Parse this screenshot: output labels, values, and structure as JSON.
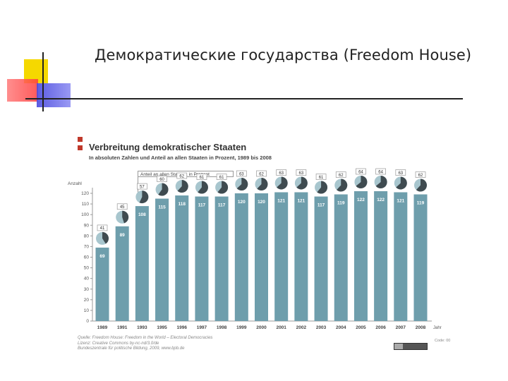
{
  "slide": {
    "title": "Демократические государства (Freedom House)"
  },
  "chart_data": {
    "type": "bar",
    "title": "Verbreitung demokratischer Staaten",
    "subtitle": "In absoluten Zahlen und Anteil an allen Staaten in Prozent, 1989 bis 2008",
    "legend_label": "Anteil an allen Staaten, in Prozent",
    "ylabel": "Anzahl",
    "xlabel": "Jahr",
    "ylim": [
      0,
      120
    ],
    "ytick_step": 10,
    "categories": [
      "1989",
      "1991",
      "1993",
      "1995",
      "1996",
      "1997",
      "1998",
      "1999",
      "2000",
      "2001",
      "2002",
      "2003",
      "2004",
      "2005",
      "2006",
      "2007",
      "2008"
    ],
    "series": [
      {
        "values": [
          69,
          89,
          108,
          115,
          118,
          117,
          117,
          120,
          120,
          121,
          121,
          117,
          119,
          122,
          122,
          121,
          119
        ]
      }
    ],
    "percent_labels": [
      41,
      45,
      57,
      60,
      62,
      61,
      61,
      63,
      62,
      63,
      63,
      61,
      62,
      64,
      64,
      63,
      62
    ],
    "bar_color": "#6e9eac",
    "pie_dark_color": "#3f4b50",
    "pie_light_color": "#a8c6ce"
  },
  "footer": {
    "source_lines": [
      "Quelle: Freedom House: Freedom in the World – Electoral Democracies",
      "Lizenz: Creative Commons by-nc-nd/3.0/de",
      "Bundeszentrale für politische Bildung, 2009, www.bpb.de"
    ],
    "code": "Code: 00"
  }
}
